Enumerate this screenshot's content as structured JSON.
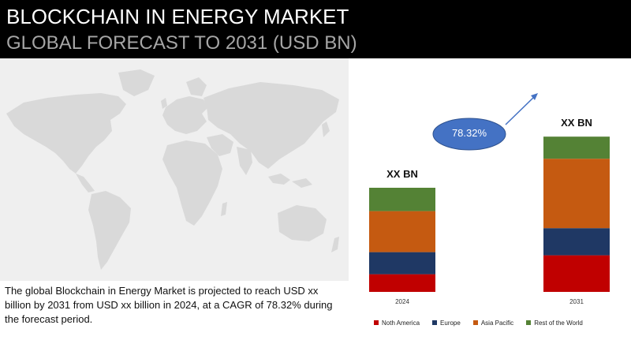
{
  "header": {
    "title": "BLOCKCHAIN IN ENERGY MARKET",
    "subtitle": "GLOBAL FORECAST TO 2031 (USD BN)"
  },
  "description": "The global Blockchain in Energy Market is projected to reach USD xx billion by 2031 from USD xx billion in 2024, at a CAGR of 78.32% during the forecast period.",
  "colors": {
    "north_america": "#c00000",
    "europe": "#1f3864",
    "asia_pacific": "#c55a11",
    "rest_of_world": "#548235",
    "cagr_bubble": "#4472c4",
    "map_land": "#d9d9d9",
    "map_background": "#efefef"
  },
  "icons": {
    "map": "world-map-icon",
    "arrow": "growth-arrow-icon"
  },
  "chart_data": {
    "type": "bar",
    "stacked": true,
    "categories": [
      "2024",
      "2031"
    ],
    "series": [
      {
        "name": "Noth America",
        "values": [
          28,
          58
        ]
      },
      {
        "name": "Europe",
        "values": [
          35,
          43
        ]
      },
      {
        "name": "Asia Pacific",
        "values": [
          65,
          110
        ]
      },
      {
        "name": "Rest of the World",
        "values": [
          37,
          35
        ]
      }
    ],
    "bar_labels": [
      "XX BN",
      "XX BN"
    ],
    "cagr_label": "78.32%",
    "ylim": [
      0,
      250
    ],
    "grid": false,
    "axes_visible": false,
    "legend_position": "bottom"
  }
}
